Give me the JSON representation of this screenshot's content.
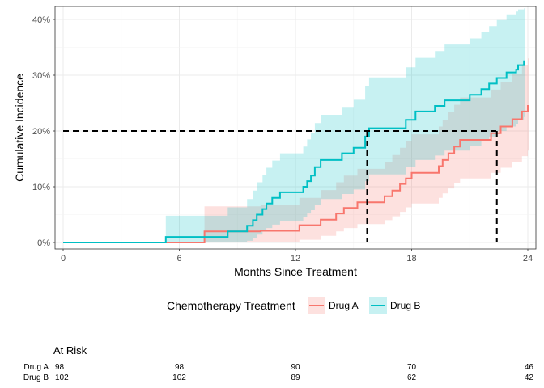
{
  "chart_data": {
    "type": "line",
    "subtype": "step-cumulative-incidence",
    "title": "",
    "xlabel": "Months Since Treatment",
    "ylabel": "Cumulative Incidence",
    "xlim": [
      0,
      24
    ],
    "ylim": [
      0,
      0.4
    ],
    "xticks": [
      0,
      6,
      12,
      18,
      24
    ],
    "xtick_labels": [
      "0",
      "6",
      "12",
      "18",
      "24"
    ],
    "yticks": [
      0,
      0.1,
      0.2,
      0.3,
      0.4
    ],
    "ytick_labels": [
      "0%",
      "10%",
      "20%",
      "30%",
      "40%"
    ],
    "grid": true,
    "reference_line": {
      "y": 0.2,
      "drop_x": [
        15.7,
        22.4
      ],
      "style": "dashed",
      "color": "#000000"
    },
    "legend": {
      "title": "Chemotherapy Treatment",
      "position": "bottom"
    },
    "series": [
      {
        "name": "Drug A",
        "color": "#F8766D",
        "fill": "#FFDDDC",
        "steps": [
          [
            0,
            0
          ],
          [
            7.3,
            0.02
          ],
          [
            9.6,
            0.02
          ],
          [
            10.2,
            0.021
          ],
          [
            12.2,
            0.031
          ],
          [
            13.3,
            0.041
          ],
          [
            14.1,
            0.052
          ],
          [
            14.5,
            0.062
          ],
          [
            15.2,
            0.072
          ],
          [
            16.1,
            0.072
          ],
          [
            16.6,
            0.083
          ],
          [
            17.0,
            0.093
          ],
          [
            17.4,
            0.105
          ],
          [
            17.7,
            0.115
          ],
          [
            18.0,
            0.125
          ],
          [
            19.2,
            0.125
          ],
          [
            19.4,
            0.137
          ],
          [
            19.6,
            0.148
          ],
          [
            19.9,
            0.16
          ],
          [
            20.2,
            0.172
          ],
          [
            20.5,
            0.184
          ],
          [
            21.7,
            0.184
          ],
          [
            22.1,
            0.196
          ],
          [
            22.6,
            0.208
          ],
          [
            23.2,
            0.221
          ],
          [
            23.7,
            0.235
          ],
          [
            24.0,
            0.245
          ]
        ],
        "lower": [
          [
            0,
            0
          ],
          [
            7.3,
            0
          ],
          [
            9.6,
            0
          ],
          [
            10.2,
            0
          ],
          [
            12.2,
            0.005
          ],
          [
            13.3,
            0.012
          ],
          [
            14.1,
            0.02
          ],
          [
            14.5,
            0.026
          ],
          [
            15.2,
            0.033
          ],
          [
            16.1,
            0.033
          ],
          [
            16.6,
            0.04
          ],
          [
            17.0,
            0.047
          ],
          [
            17.4,
            0.055
          ],
          [
            17.7,
            0.063
          ],
          [
            18.0,
            0.07
          ],
          [
            19.2,
            0.07
          ],
          [
            19.4,
            0.08
          ],
          [
            19.6,
            0.088
          ],
          [
            19.9,
            0.097
          ],
          [
            20.2,
            0.107
          ],
          [
            20.5,
            0.115
          ],
          [
            21.7,
            0.115
          ],
          [
            22.1,
            0.125
          ],
          [
            22.6,
            0.134
          ],
          [
            23.2,
            0.144
          ],
          [
            23.7,
            0.155
          ],
          [
            24.0,
            0.165
          ]
        ],
        "upper": [
          [
            0,
            0
          ],
          [
            7.3,
            0.065
          ],
          [
            9.6,
            0.065
          ],
          [
            10.2,
            0.067
          ],
          [
            12.2,
            0.08
          ],
          [
            13.3,
            0.094
          ],
          [
            14.1,
            0.108
          ],
          [
            14.5,
            0.12
          ],
          [
            15.2,
            0.132
          ],
          [
            16.1,
            0.132
          ],
          [
            16.6,
            0.145
          ],
          [
            17.0,
            0.157
          ],
          [
            17.4,
            0.17
          ],
          [
            17.7,
            0.182
          ],
          [
            18.0,
            0.194
          ],
          [
            19.2,
            0.194
          ],
          [
            19.4,
            0.208
          ],
          [
            19.6,
            0.22
          ],
          [
            19.9,
            0.234
          ],
          [
            20.2,
            0.247
          ],
          [
            20.5,
            0.26
          ],
          [
            21.7,
            0.26
          ],
          [
            22.1,
            0.274
          ],
          [
            22.6,
            0.287
          ],
          [
            23.2,
            0.302
          ],
          [
            23.7,
            0.318
          ],
          [
            24.0,
            0.33
          ]
        ]
      },
      {
        "name": "Drug B",
        "color": "#00BFC4",
        "fill": "#CCEFF1",
        "steps": [
          [
            0,
            0
          ],
          [
            5.3,
            0.01
          ],
          [
            8.5,
            0.02
          ],
          [
            9.5,
            0.03
          ],
          [
            9.8,
            0.04
          ],
          [
            10.0,
            0.05
          ],
          [
            10.3,
            0.06
          ],
          [
            10.5,
            0.07
          ],
          [
            10.8,
            0.08
          ],
          [
            11.2,
            0.09
          ],
          [
            12.4,
            0.1
          ],
          [
            12.6,
            0.11
          ],
          [
            12.8,
            0.12
          ],
          [
            13.0,
            0.135
          ],
          [
            13.3,
            0.148
          ],
          [
            14.4,
            0.16
          ],
          [
            15.0,
            0.17
          ],
          [
            15.6,
            0.19
          ],
          [
            15.8,
            0.205
          ],
          [
            17.7,
            0.22
          ],
          [
            18.2,
            0.235
          ],
          [
            19.2,
            0.245
          ],
          [
            19.7,
            0.255
          ],
          [
            21.0,
            0.265
          ],
          [
            21.6,
            0.275
          ],
          [
            22.0,
            0.285
          ],
          [
            22.4,
            0.295
          ],
          [
            22.9,
            0.305
          ],
          [
            23.4,
            0.31
          ],
          [
            23.5,
            0.318
          ],
          [
            23.8,
            0.325
          ]
        ],
        "lower": [
          [
            0,
            0
          ],
          [
            5.3,
            0
          ],
          [
            8.5,
            0
          ],
          [
            9.5,
            0.003
          ],
          [
            9.8,
            0.008
          ],
          [
            10.0,
            0.014
          ],
          [
            10.3,
            0.02
          ],
          [
            10.5,
            0.026
          ],
          [
            10.8,
            0.032
          ],
          [
            11.2,
            0.038
          ],
          [
            12.4,
            0.045
          ],
          [
            12.6,
            0.052
          ],
          [
            12.8,
            0.058
          ],
          [
            13.0,
            0.067
          ],
          [
            13.3,
            0.078
          ],
          [
            14.4,
            0.087
          ],
          [
            15.0,
            0.095
          ],
          [
            15.6,
            0.11
          ],
          [
            15.8,
            0.122
          ],
          [
            17.7,
            0.135
          ],
          [
            18.2,
            0.148
          ],
          [
            19.2,
            0.156
          ],
          [
            19.7,
            0.165
          ],
          [
            21.0,
            0.173
          ],
          [
            21.6,
            0.182
          ],
          [
            22.0,
            0.19
          ],
          [
            22.4,
            0.2
          ],
          [
            22.9,
            0.208
          ],
          [
            23.4,
            0.213
          ],
          [
            23.5,
            0.22
          ],
          [
            23.8,
            0.225
          ]
        ],
        "upper": [
          [
            0,
            0
          ],
          [
            5.3,
            0.048
          ],
          [
            8.5,
            0.063
          ],
          [
            9.5,
            0.078
          ],
          [
            9.8,
            0.093
          ],
          [
            10.0,
            0.108
          ],
          [
            10.3,
            0.121
          ],
          [
            10.5,
            0.134
          ],
          [
            10.8,
            0.147
          ],
          [
            11.2,
            0.16
          ],
          [
            12.4,
            0.172
          ],
          [
            12.6,
            0.185
          ],
          [
            12.8,
            0.197
          ],
          [
            13.0,
            0.214
          ],
          [
            13.3,
            0.229
          ],
          [
            14.4,
            0.243
          ],
          [
            15.0,
            0.256
          ],
          [
            15.6,
            0.28
          ],
          [
            15.8,
            0.296
          ],
          [
            17.7,
            0.314
          ],
          [
            18.2,
            0.331
          ],
          [
            19.2,
            0.343
          ],
          [
            19.7,
            0.355
          ],
          [
            21.0,
            0.366
          ],
          [
            21.6,
            0.377
          ],
          [
            22.0,
            0.388
          ],
          [
            22.4,
            0.399
          ],
          [
            22.9,
            0.409
          ],
          [
            23.4,
            0.414
          ],
          [
            23.5,
            0.418
          ],
          [
            23.8,
            0.42
          ]
        ]
      }
    ],
    "risk_table": {
      "title": "At Risk",
      "times": [
        0,
        6,
        12,
        18,
        24
      ],
      "rows": [
        {
          "name": "Drug A",
          "values": [
            98,
            98,
            90,
            70,
            46
          ]
        },
        {
          "name": "Drug B",
          "values": [
            102,
            102,
            89,
            62,
            42
          ]
        }
      ]
    }
  }
}
